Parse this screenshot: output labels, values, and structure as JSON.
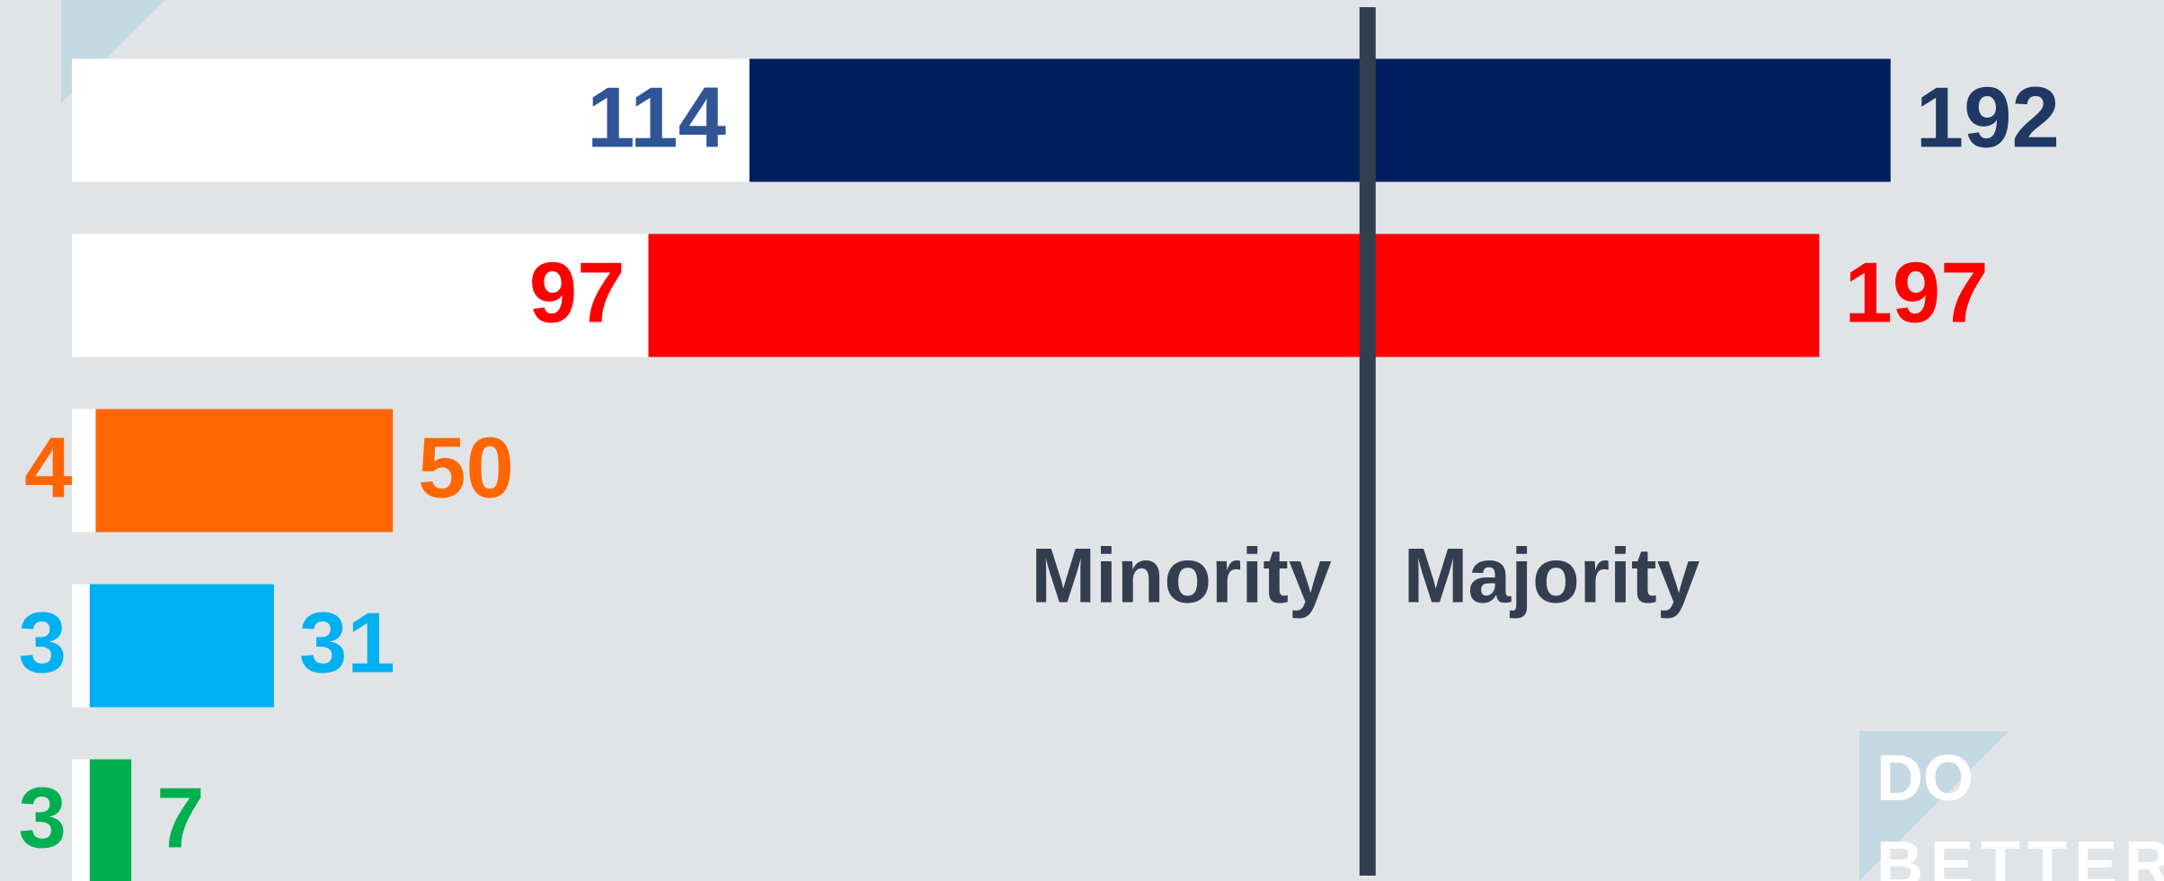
{
  "chart_data": {
    "type": "bar",
    "orientation": "horizontal",
    "base_color": "#ffffff",
    "rows": [
      {
        "color": "#001f5f",
        "label_colors": [
          "#2f5597",
          "#1f3864"
        ],
        "values": [
          114,
          192
        ]
      },
      {
        "color": "#ff0000",
        "label_colors": [
          "#ff0000",
          "#ff0000"
        ],
        "values": [
          97,
          197
        ]
      },
      {
        "color": "#ff6600",
        "label_colors": [
          "#ff6600",
          "#ff6600"
        ],
        "values": [
          4,
          50
        ]
      },
      {
        "color": "#00b0f0",
        "label_colors": [
          "#00b0f0",
          "#00b0f0"
        ],
        "values": [
          3,
          31
        ]
      },
      {
        "color": "#00b050",
        "label_colors": [
          "#00b050",
          "#00b050"
        ],
        "values": [
          3,
          7
        ]
      }
    ],
    "xlim": [
      0,
      352
    ],
    "reference_line": {
      "value": 218,
      "color": "#333f50",
      "labels": [
        "Minority",
        "Majority"
      ]
    },
    "logo": [
      "DO",
      "BETTER"
    ]
  }
}
